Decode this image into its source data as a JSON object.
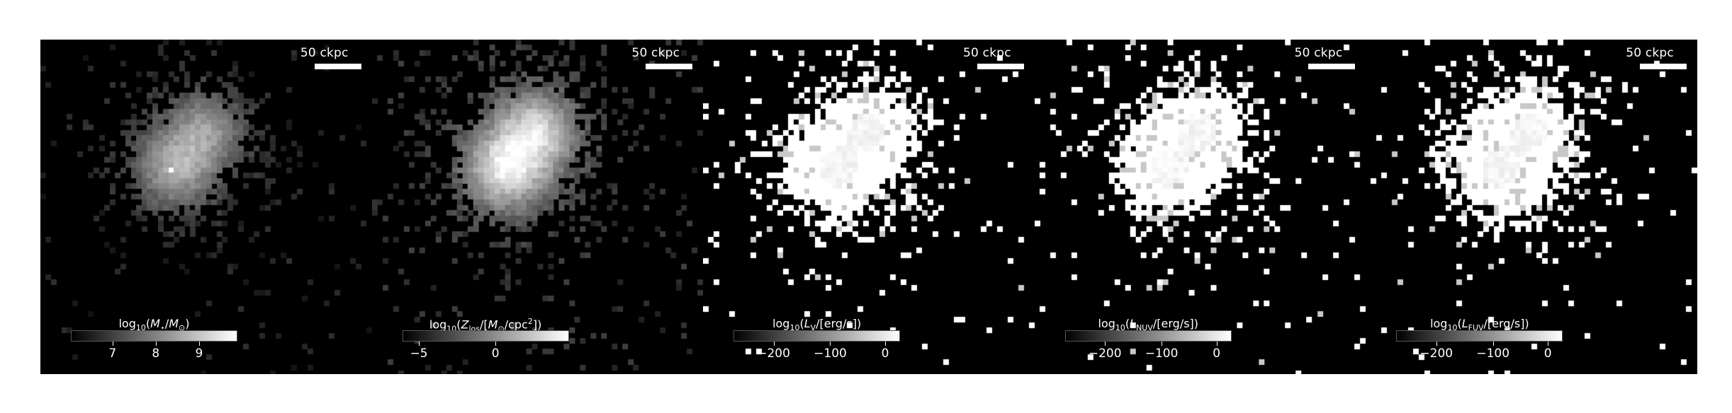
{
  "panels": [
    {
      "id": "stellar-mass",
      "scalebar": "50 ckpc",
      "cbar_label_html": "log<sub>10</sub>(<i>M</i><sub>⋆</sub>/<i>M</i><sub>⊙</sub>)",
      "ticks": [
        {
          "label": "7",
          "frac": 0.25
        },
        {
          "label": "8",
          "frac": 0.51
        },
        {
          "label": "9",
          "frac": 0.77
        }
      ]
    },
    {
      "id": "metallicity",
      "scalebar": "50 ckpc",
      "cbar_label_html": "log<sub>10</sub>(<i>Z</i><sub>los</sub>/[<i>M</i><sub>⊙</sub>/cpc<sup>2</sup>])",
      "ticks": [
        {
          "label": "−5",
          "frac": 0.1
        },
        {
          "label": "0",
          "frac": 0.56
        }
      ]
    },
    {
      "id": "lum-v",
      "scalebar": "50 ckpc",
      "cbar_label_html": "log<sub>10</sub>(<i>L</i><sub>V</sub>/[erg/s])",
      "ticks": [
        {
          "label": "−200",
          "frac": 0.24
        },
        {
          "label": "−100",
          "frac": 0.58
        },
        {
          "label": "0",
          "frac": 0.91
        }
      ]
    },
    {
      "id": "lum-nuv",
      "scalebar": "50 ckpc",
      "cbar_label_html": "log<sub>10</sub>(<i>L</i><sub>NUV</sub>/[erg/s])",
      "ticks": [
        {
          "label": "−200",
          "frac": 0.24
        },
        {
          "label": "−100",
          "frac": 0.58
        },
        {
          "label": "0",
          "frac": 0.91
        }
      ]
    },
    {
      "id": "lum-fuv",
      "scalebar": "50 ckpc",
      "cbar_label_html": "log<sub>10</sub>(<i>L</i><sub>FUV</sub>/[erg/s])",
      "ticks": [
        {
          "label": "−200",
          "frac": 0.24
        },
        {
          "label": "−100",
          "frac": 0.58
        },
        {
          "label": "0",
          "frac": 0.91
        }
      ]
    }
  ]
}
